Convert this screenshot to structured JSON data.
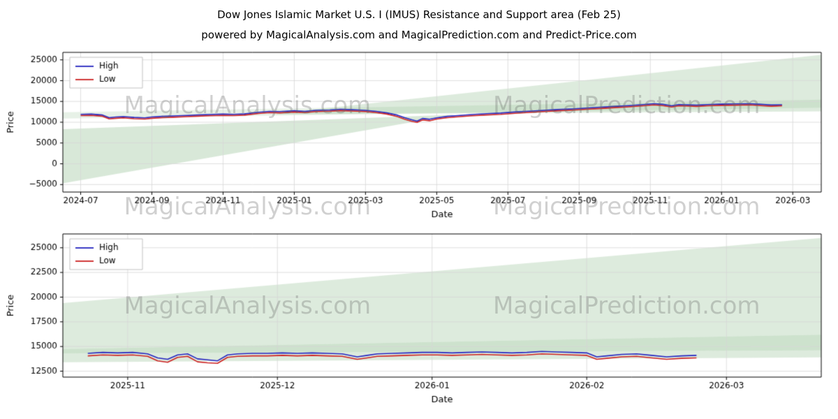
{
  "title": "Dow Jones Islamic Market U.S. I (IMUS) Resistance and Support area (Feb 25)",
  "subtitle": "powered by MagicalAnalysis.com and MagicalPrediction.com and Predict-Price.com",
  "watermarks": {
    "left": "MagicalAnalysis.com",
    "right": "MagicalPrediction.com"
  },
  "legend": {
    "high_label": "High",
    "low_label": "Low"
  },
  "colors": {
    "high_line": "#2323bf",
    "low_line": "#cc2020",
    "band_green": "rgba(144,190,144,0.32)",
    "grid": "#d6d6d6",
    "spine": "#000000"
  },
  "chart_data": [
    {
      "type": "line",
      "title": "Dow Jones Islamic Market U.S. I (IMUS) Resistance and Support area (Feb 25)",
      "xlabel": "Date",
      "ylabel": "Price",
      "xlim": [
        -0.5,
        20.8
      ],
      "ylim": [
        -6800,
        26800
      ],
      "grid": true,
      "legend_position": "upper left",
      "xticks": [
        {
          "v": 0,
          "label": "2024-07"
        },
        {
          "v": 2,
          "label": "2024-09"
        },
        {
          "v": 4,
          "label": "2024-11"
        },
        {
          "v": 6,
          "label": "2025-01"
        },
        {
          "v": 8,
          "label": "2025-03"
        },
        {
          "v": 10,
          "label": "2025-05"
        },
        {
          "v": 12,
          "label": "2025-07"
        },
        {
          "v": 14,
          "label": "2025-09"
        },
        {
          "v": 16,
          "label": "2025-11"
        },
        {
          "v": 18,
          "label": "2026-01"
        },
        {
          "v": 20,
          "label": "2026-03"
        }
      ],
      "yticks": [
        {
          "v": -5000,
          "label": "−5000"
        },
        {
          "v": 0,
          "label": "0"
        },
        {
          "v": 5000,
          "label": "5000"
        },
        {
          "v": 10000,
          "label": "10000"
        },
        {
          "v": 15000,
          "label": "15000"
        },
        {
          "v": 20000,
          "label": "20000"
        },
        {
          "v": 25000,
          "label": "25000"
        }
      ],
      "x": [
        0,
        0.3,
        0.6,
        0.8,
        1,
        1.2,
        1.5,
        1.8,
        2,
        2.3,
        2.6,
        3,
        3.3,
        3.6,
        4,
        4.3,
        4.6,
        5,
        5.3,
        5.6,
        6,
        6.3,
        6.6,
        7,
        7.3,
        7.6,
        8,
        8.3,
        8.6,
        8.9,
        9.1,
        9.3,
        9.45,
        9.6,
        9.8,
        10,
        10.3,
        10.6,
        11,
        11.4,
        11.8,
        12.2,
        12.6,
        13,
        13.4,
        13.8,
        14.2,
        14.6,
        15,
        15.4,
        15.8,
        16.1,
        16.35,
        16.6,
        16.8,
        17,
        17.3,
        17.6,
        18,
        18.4,
        18.8,
        19.1,
        19.4,
        19.7
      ],
      "series": [
        {
          "name": "High",
          "color": "#2323bf",
          "values": [
            11900,
            11950,
            11750,
            11100,
            11250,
            11350,
            11150,
            11050,
            11250,
            11400,
            11500,
            11650,
            11750,
            11850,
            11950,
            11900,
            12000,
            12400,
            12600,
            12550,
            12750,
            12600,
            12850,
            12950,
            13100,
            13000,
            12850,
            12600,
            12250,
            11700,
            11100,
            10600,
            10250,
            10900,
            10700,
            11050,
            11400,
            11600,
            11850,
            12050,
            12200,
            12450,
            12650,
            12850,
            13050,
            13200,
            13400,
            13600,
            13800,
            14000,
            14250,
            14450,
            14300,
            13950,
            14250,
            14200,
            14100,
            14250,
            14350,
            14400,
            14450,
            14300,
            14150,
            14200
          ]
        },
        {
          "name": "Low",
          "color": "#cc2020",
          "values": [
            11600,
            11650,
            11450,
            10800,
            10950,
            11050,
            10850,
            10750,
            10950,
            11100,
            11200,
            11350,
            11450,
            11550,
            11650,
            11600,
            11700,
            12100,
            12300,
            12250,
            12450,
            12300,
            12550,
            12650,
            12800,
            12700,
            12550,
            12300,
            11950,
            11350,
            10700,
            10200,
            9950,
            10550,
            10350,
            10750,
            11100,
            11300,
            11550,
            11750,
            11900,
            12150,
            12350,
            12550,
            12750,
            12900,
            13100,
            13300,
            13500,
            13700,
            13950,
            14150,
            14000,
            13650,
            13950,
            13900,
            13800,
            13950,
            14050,
            14100,
            14150,
            14000,
            13850,
            13950
          ]
        }
      ],
      "bands": [
        {
          "name": "support-wedge-left",
          "color": "rgba(144,190,144,0.35)",
          "points": [
            [
              -0.5,
              8300
            ],
            [
              10.5,
              11800
            ],
            [
              -0.5,
              -4700
            ]
          ]
        },
        {
          "name": "resistance-wedge-right",
          "color": "rgba(144,190,144,0.30)",
          "points": [
            [
              5.5,
              12100
            ],
            [
              20.8,
              26200
            ],
            [
              20.8,
              12600
            ],
            [
              5.5,
              11900
            ]
          ]
        },
        {
          "name": "trend-band",
          "color": "rgba(144,190,144,0.22)",
          "points": [
            [
              -0.5,
              12400
            ],
            [
              20.8,
              15400
            ],
            [
              20.8,
              13500
            ],
            [
              -0.5,
              10900
            ]
          ]
        }
      ]
    },
    {
      "type": "line",
      "title": "",
      "xlabel": "Date",
      "ylabel": "Price",
      "xlim": [
        -5,
        147
      ],
      "ylim": [
        11900,
        26400
      ],
      "grid": true,
      "legend_position": "upper left",
      "xticks": [
        {
          "v": 8,
          "label": "2025-11"
        },
        {
          "v": 38,
          "label": "2025-12"
        },
        {
          "v": 69,
          "label": "2026-01"
        },
        {
          "v": 100,
          "label": "2026-02"
        },
        {
          "v": 128,
          "label": "2026-03"
        }
      ],
      "yticks": [
        {
          "v": 12500,
          "label": "12500"
        },
        {
          "v": 15000,
          "label": "15000"
        },
        {
          "v": 17500,
          "label": "17500"
        },
        {
          "v": 20000,
          "label": "20000"
        },
        {
          "v": 22500,
          "label": "22500"
        },
        {
          "v": 25000,
          "label": "25000"
        }
      ],
      "x": [
        0,
        3,
        6,
        9,
        12,
        14,
        16,
        18,
        20,
        22,
        24,
        26,
        28,
        30,
        33,
        36,
        39,
        42,
        45,
        48,
        51,
        54,
        56,
        58,
        61,
        64,
        67,
        70,
        73,
        76,
        79,
        82,
        85,
        88,
        91,
        94,
        97,
        100,
        102,
        104,
        107,
        110,
        113,
        116,
        119,
        122
      ],
      "series": [
        {
          "name": "High",
          "color": "#2323bf",
          "values": [
            14300,
            14400,
            14350,
            14400,
            14250,
            13850,
            13700,
            14150,
            14250,
            13750,
            13650,
            13550,
            14150,
            14250,
            14300,
            14300,
            14350,
            14300,
            14350,
            14300,
            14250,
            13950,
            14100,
            14250,
            14300,
            14350,
            14400,
            14400,
            14350,
            14400,
            14450,
            14400,
            14350,
            14400,
            14500,
            14450,
            14400,
            14350,
            13950,
            14050,
            14200,
            14250,
            14100,
            13950,
            14050,
            14100
          ]
        },
        {
          "name": "Low",
          "color": "#cc2020",
          "values": [
            14050,
            14150,
            14100,
            14150,
            14000,
            13550,
            13400,
            13900,
            14000,
            13450,
            13350,
            13300,
            13900,
            14000,
            14050,
            14050,
            14100,
            14050,
            14100,
            14050,
            14000,
            13700,
            13850,
            14000,
            14050,
            14100,
            14150,
            14150,
            14100,
            14150,
            14200,
            14150,
            14100,
            14150,
            14250,
            14200,
            14150,
            14100,
            13700,
            13800,
            13950,
            14000,
            13850,
            13700,
            13800,
            13850
          ]
        }
      ],
      "bands": [
        {
          "name": "resistance-wedge",
          "color": "rgba(144,190,144,0.30)",
          "points": [
            [
              -5,
              19400
            ],
            [
              147,
              26000
            ],
            [
              147,
              16200
            ],
            [
              -5,
              14750
            ]
          ]
        },
        {
          "name": "mid-band",
          "color": "rgba(144,190,144,0.45)",
          "points": [
            [
              -5,
              14750
            ],
            [
              147,
              16200
            ],
            [
              147,
              14600
            ],
            [
              -5,
              14300
            ]
          ]
        },
        {
          "name": "support-band",
          "color": "rgba(144,190,144,0.30)",
          "points": [
            [
              -5,
              14300
            ],
            [
              147,
              14600
            ],
            [
              147,
              13900
            ],
            [
              -5,
              13400
            ]
          ]
        }
      ]
    }
  ]
}
